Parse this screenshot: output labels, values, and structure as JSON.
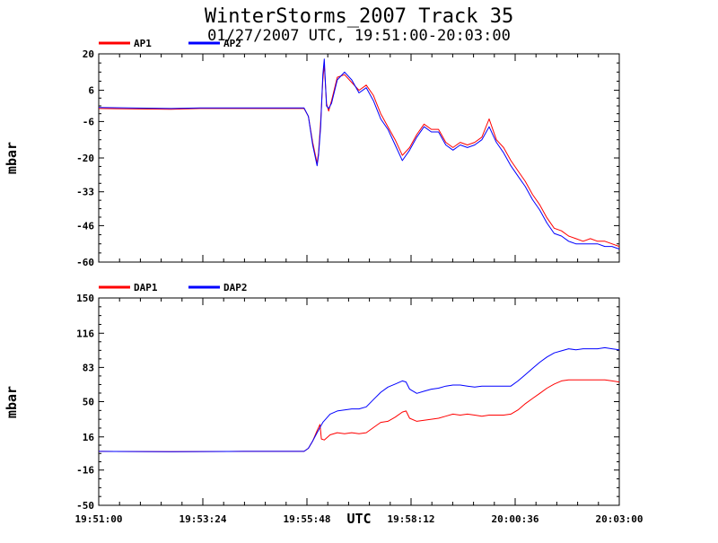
{
  "title": "WinterStorms_2007 Track 35",
  "subtitle": "01/27/2007 UTC, 19:51:00-20:03:00",
  "xlabel": "UTC",
  "x_tick_labels": [
    "19:51:00",
    "19:53:24",
    "19:55:48",
    "19:58:12",
    "20:00:36",
    "20:03:00"
  ],
  "chart_data": [
    {
      "type": "line",
      "ylabel": "mbar",
      "ylim": [
        -60,
        20
      ],
      "y_tick_labels": [
        "20",
        "6",
        "-6",
        "-20",
        "-33",
        "-46",
        "-60"
      ],
      "y_ticks": [
        20,
        6,
        -6,
        -20,
        -33,
        -46,
        -60
      ],
      "x_range_seconds": [
        0,
        720
      ],
      "series": [
        {
          "name": "AP1",
          "color": "#ff0000",
          "points": [
            [
              0,
              -1
            ],
            [
              100,
              -1.3
            ],
            [
              140,
              -1
            ],
            [
              284,
              -1
            ],
            [
              290,
              -4
            ],
            [
              296,
              -14
            ],
            [
              302,
              -22
            ],
            [
              304,
              -18
            ],
            [
              307,
              -6
            ],
            [
              310,
              10
            ],
            [
              312,
              16
            ],
            [
              315,
              1
            ],
            [
              318,
              -2
            ],
            [
              322,
              2
            ],
            [
              330,
              11
            ],
            [
              340,
              12
            ],
            [
              350,
              9
            ],
            [
              360,
              6
            ],
            [
              370,
              8
            ],
            [
              380,
              4
            ],
            [
              390,
              -3
            ],
            [
              400,
              -8
            ],
            [
              410,
              -13
            ],
            [
              420,
              -19
            ],
            [
              430,
              -16
            ],
            [
              440,
              -11
            ],
            [
              450,
              -7
            ],
            [
              460,
              -9
            ],
            [
              470,
              -9
            ],
            [
              480,
              -14
            ],
            [
              490,
              -16
            ],
            [
              500,
              -14
            ],
            [
              510,
              -15
            ],
            [
              520,
              -14
            ],
            [
              530,
              -12
            ],
            [
              540,
              -5
            ],
            [
              545,
              -9
            ],
            [
              550,
              -13
            ],
            [
              560,
              -16
            ],
            [
              570,
              -21
            ],
            [
              580,
              -25
            ],
            [
              590,
              -29
            ],
            [
              600,
              -34
            ],
            [
              610,
              -38
            ],
            [
              620,
              -43
            ],
            [
              630,
              -47
            ],
            [
              640,
              -48
            ],
            [
              650,
              -50
            ],
            [
              660,
              -51
            ],
            [
              670,
              -52
            ],
            [
              680,
              -51
            ],
            [
              690,
              -52
            ],
            [
              700,
              -52
            ],
            [
              710,
              -53
            ],
            [
              720,
              -54
            ]
          ]
        },
        {
          "name": "AP2",
          "color": "#0000ff",
          "points": [
            [
              0,
              -0.6
            ],
            [
              100,
              -1
            ],
            [
              140,
              -0.8
            ],
            [
              284,
              -0.8
            ],
            [
              290,
              -4
            ],
            [
              296,
              -15
            ],
            [
              302,
              -23
            ],
            [
              304,
              -19
            ],
            [
              307,
              -8
            ],
            [
              310,
              12
            ],
            [
              312,
              18
            ],
            [
              315,
              0
            ],
            [
              318,
              -1
            ],
            [
              322,
              1
            ],
            [
              330,
              10
            ],
            [
              340,
              13
            ],
            [
              350,
              10
            ],
            [
              360,
              5
            ],
            [
              370,
              7
            ],
            [
              380,
              2
            ],
            [
              390,
              -5
            ],
            [
              400,
              -9
            ],
            [
              410,
              -15
            ],
            [
              420,
              -21
            ],
            [
              430,
              -17
            ],
            [
              440,
              -12
            ],
            [
              450,
              -8
            ],
            [
              460,
              -10
            ],
            [
              470,
              -10
            ],
            [
              480,
              -15
            ],
            [
              490,
              -17
            ],
            [
              500,
              -15
            ],
            [
              510,
              -16
            ],
            [
              520,
              -15
            ],
            [
              530,
              -13
            ],
            [
              540,
              -8
            ],
            [
              545,
              -11
            ],
            [
              550,
              -14
            ],
            [
              560,
              -18
            ],
            [
              570,
              -23
            ],
            [
              580,
              -27
            ],
            [
              590,
              -31
            ],
            [
              600,
              -36
            ],
            [
              610,
              -40
            ],
            [
              620,
              -45
            ],
            [
              630,
              -49
            ],
            [
              640,
              -50
            ],
            [
              650,
              -52
            ],
            [
              660,
              -53
            ],
            [
              670,
              -53
            ],
            [
              680,
              -53
            ],
            [
              690,
              -53
            ],
            [
              700,
              -54
            ],
            [
              710,
              -54
            ],
            [
              720,
              -55
            ]
          ]
        }
      ]
    },
    {
      "type": "line",
      "ylabel": "mbar",
      "ylim": [
        -50,
        150
      ],
      "y_tick_labels": [
        "150",
        "116",
        "83",
        "50",
        "16",
        "-16",
        "-50"
      ],
      "y_ticks": [
        150,
        116,
        83,
        50,
        16,
        -16,
        -50
      ],
      "x_range_seconds": [
        0,
        720
      ],
      "series": [
        {
          "name": "DAP1",
          "color": "#ff0000",
          "points": [
            [
              0,
              2
            ],
            [
              100,
              1.8
            ],
            [
              200,
              2
            ],
            [
              284,
              2
            ],
            [
              290,
              5
            ],
            [
              296,
              12
            ],
            [
              302,
              22
            ],
            [
              306,
              28
            ],
            [
              308,
              14
            ],
            [
              312,
              13
            ],
            [
              320,
              18
            ],
            [
              330,
              20
            ],
            [
              340,
              19
            ],
            [
              350,
              20
            ],
            [
              360,
              19
            ],
            [
              370,
              20
            ],
            [
              380,
              25
            ],
            [
              390,
              30
            ],
            [
              400,
              31
            ],
            [
              410,
              35
            ],
            [
              420,
              40
            ],
            [
              425,
              41
            ],
            [
              430,
              34
            ],
            [
              440,
              31
            ],
            [
              450,
              32
            ],
            [
              460,
              33
            ],
            [
              470,
              34
            ],
            [
              480,
              36
            ],
            [
              490,
              38
            ],
            [
              500,
              37
            ],
            [
              510,
              38
            ],
            [
              520,
              37
            ],
            [
              530,
              36
            ],
            [
              540,
              37
            ],
            [
              550,
              37
            ],
            [
              560,
              37
            ],
            [
              570,
              38
            ],
            [
              580,
              42
            ],
            [
              590,
              48
            ],
            [
              600,
              53
            ],
            [
              610,
              58
            ],
            [
              620,
              63
            ],
            [
              630,
              67
            ],
            [
              640,
              70
            ],
            [
              650,
              71
            ],
            [
              660,
              71
            ],
            [
              670,
              71
            ],
            [
              680,
              71
            ],
            [
              690,
              71
            ],
            [
              700,
              71
            ],
            [
              710,
              70
            ],
            [
              720,
              69
            ]
          ]
        },
        {
          "name": "DAP2",
          "color": "#0000ff",
          "points": [
            [
              0,
              2
            ],
            [
              100,
              1.8
            ],
            [
              200,
              2
            ],
            [
              284,
              2
            ],
            [
              290,
              5
            ],
            [
              296,
              12
            ],
            [
              302,
              20
            ],
            [
              310,
              30
            ],
            [
              320,
              38
            ],
            [
              330,
              41
            ],
            [
              340,
              42
            ],
            [
              350,
              43
            ],
            [
              360,
              43
            ],
            [
              370,
              45
            ],
            [
              380,
              52
            ],
            [
              390,
              59
            ],
            [
              400,
              64
            ],
            [
              410,
              67
            ],
            [
              420,
              70
            ],
            [
              425,
              69
            ],
            [
              430,
              62
            ],
            [
              440,
              58
            ],
            [
              450,
              60
            ],
            [
              460,
              62
            ],
            [
              470,
              63
            ],
            [
              480,
              65
            ],
            [
              490,
              66
            ],
            [
              500,
              66
            ],
            [
              510,
              65
            ],
            [
              520,
              64
            ],
            [
              530,
              65
            ],
            [
              540,
              65
            ],
            [
              550,
              65
            ],
            [
              560,
              65
            ],
            [
              570,
              65
            ],
            [
              580,
              70
            ],
            [
              590,
              76
            ],
            [
              600,
              82
            ],
            [
              610,
              88
            ],
            [
              620,
              93
            ],
            [
              630,
              97
            ],
            [
              640,
              99
            ],
            [
              650,
              101
            ],
            [
              660,
              100
            ],
            [
              670,
              101
            ],
            [
              680,
              101
            ],
            [
              690,
              101
            ],
            [
              700,
              102
            ],
            [
              710,
              101
            ],
            [
              720,
              100
            ]
          ]
        }
      ]
    }
  ]
}
